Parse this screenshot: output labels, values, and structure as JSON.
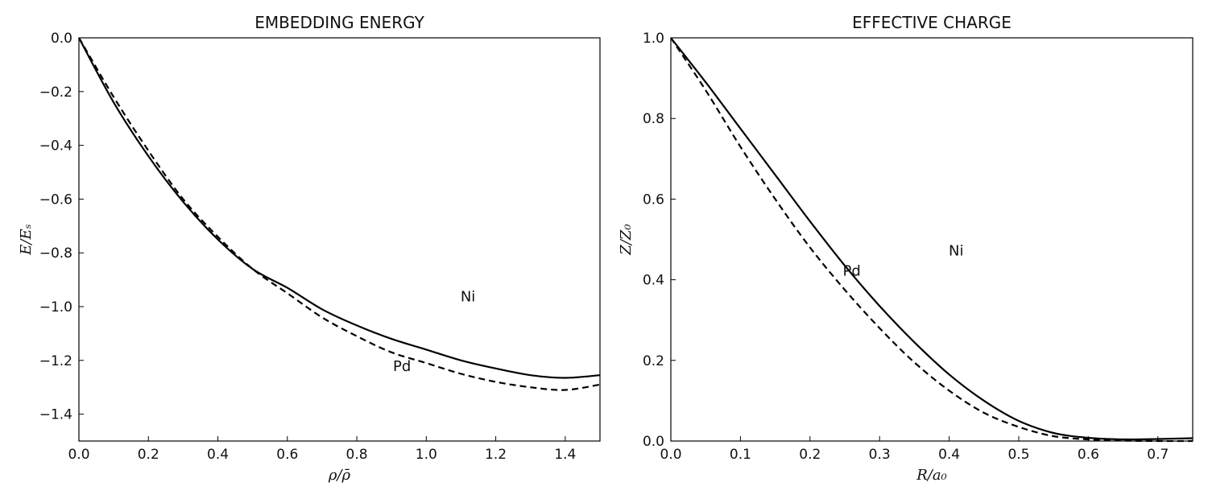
{
  "chart_data": [
    {
      "type": "line",
      "title": "EMBEDDING ENERGY",
      "xlabel": "ρ/ρ̄",
      "ylabel": "E/Eₛ",
      "xlim": [
        0.0,
        1.5
      ],
      "ylim": [
        -1.5,
        0.0
      ],
      "xticks": [
        0.0,
        0.2,
        0.4,
        0.6,
        0.8,
        1.0,
        1.2,
        1.4
      ],
      "xtick_labels": [
        "0.0",
        "0.2",
        "0.4",
        "0.6",
        "0.8",
        "1.0",
        "1.2",
        "1.4"
      ],
      "yticks": [
        0.0,
        -0.2,
        -0.4,
        -0.6,
        -0.8,
        -1.0,
        -1.2,
        -1.4
      ],
      "ytick_labels": [
        "0.0",
        "−0.2",
        "−0.4",
        "−0.6",
        "−0.8",
        "−1.0",
        "−1.2",
        "−1.4"
      ],
      "grid": false,
      "series": [
        {
          "name": "Ni",
          "style": "solid",
          "x": [
            0.0,
            0.1,
            0.2,
            0.3,
            0.4,
            0.5,
            0.6,
            0.7,
            0.8,
            0.9,
            1.0,
            1.1,
            1.2,
            1.3,
            1.4,
            1.5
          ],
          "y": [
            0.0,
            -0.24,
            -0.44,
            -0.61,
            -0.75,
            -0.86,
            -0.93,
            -1.01,
            -1.07,
            -1.12,
            -1.16,
            -1.2,
            -1.23,
            -1.255,
            -1.265,
            -1.255
          ]
        },
        {
          "name": "Pd",
          "style": "dashed",
          "x": [
            0.0,
            0.1,
            0.2,
            0.3,
            0.4,
            0.5,
            0.6,
            0.7,
            0.8,
            0.9,
            1.0,
            1.1,
            1.2,
            1.3,
            1.4,
            1.5
          ],
          "y": [
            0.0,
            -0.22,
            -0.42,
            -0.6,
            -0.74,
            -0.86,
            -0.95,
            -1.04,
            -1.11,
            -1.17,
            -1.21,
            -1.25,
            -1.28,
            -1.3,
            -1.31,
            -1.29
          ]
        }
      ],
      "annotations": [
        {
          "text": "Ni",
          "x": 1.12,
          "y": -0.98
        },
        {
          "text": "Pd",
          "x": 0.93,
          "y": -1.24
        }
      ]
    },
    {
      "type": "line",
      "title": "EFFECTIVE CHARGE",
      "xlabel": "R/a₀",
      "ylabel": "Z/Z₀",
      "xlim": [
        0.0,
        0.75
      ],
      "ylim": [
        0.0,
        1.0
      ],
      "xticks": [
        0.0,
        0.1,
        0.2,
        0.3,
        0.4,
        0.5,
        0.6,
        0.7
      ],
      "xtick_labels": [
        "0.0",
        "0.1",
        "0.2",
        "0.3",
        "0.4",
        "0.5",
        "0.6",
        "0.7"
      ],
      "yticks": [
        0.0,
        0.2,
        0.4,
        0.6,
        0.8,
        1.0
      ],
      "ytick_labels": [
        "0.0",
        "0.2",
        "0.4",
        "0.6",
        "0.8",
        "1.0"
      ],
      "grid": false,
      "series": [
        {
          "name": "Ni",
          "style": "solid",
          "x": [
            0.0,
            0.05,
            0.1,
            0.15,
            0.2,
            0.25,
            0.3,
            0.35,
            0.4,
            0.45,
            0.5,
            0.55,
            0.6,
            0.65,
            0.7,
            0.75
          ],
          "y": [
            1.0,
            0.89,
            0.775,
            0.66,
            0.545,
            0.435,
            0.335,
            0.245,
            0.165,
            0.1,
            0.05,
            0.02,
            0.008,
            0.004,
            0.005,
            0.007
          ]
        },
        {
          "name": "Pd",
          "style": "dashed",
          "x": [
            0.0,
            0.05,
            0.1,
            0.15,
            0.2,
            0.25,
            0.3,
            0.35,
            0.4,
            0.45,
            0.5,
            0.55,
            0.6,
            0.65,
            0.7,
            0.75
          ],
          "y": [
            1.0,
            0.87,
            0.73,
            0.6,
            0.48,
            0.375,
            0.28,
            0.195,
            0.125,
            0.07,
            0.035,
            0.012,
            0.004,
            0.001,
            0.0,
            0.0
          ]
        }
      ],
      "annotations": [
        {
          "text": "Ni",
          "x": 0.41,
          "y": 0.46
        },
        {
          "text": "Pd",
          "x": 0.26,
          "y": 0.41
        }
      ]
    }
  ]
}
